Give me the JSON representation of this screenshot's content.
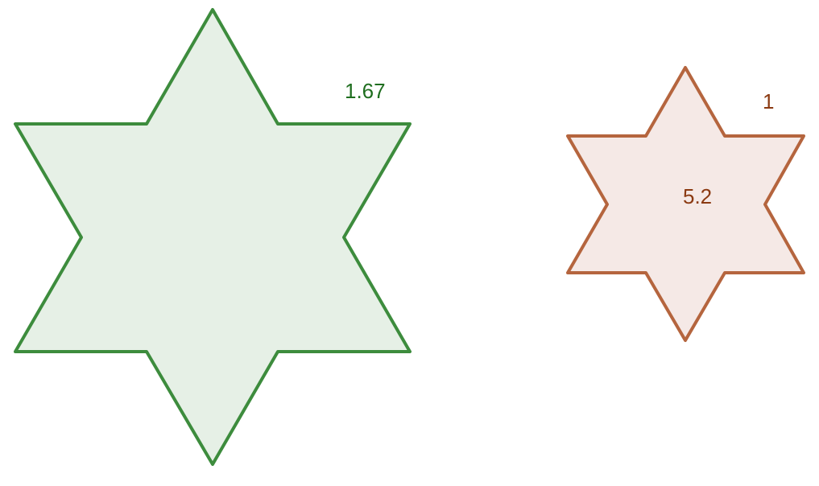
{
  "shapes": [
    {
      "name": "large-star",
      "label": "1.67",
      "stroke": "#3d8c3d",
      "fill": "#e6f0e6",
      "label_color": "#1f6e1f"
    },
    {
      "name": "small-star",
      "label_top": "1",
      "label_center": "5.2",
      "stroke": "#b5653e",
      "fill": "#f5e9e6",
      "label_color": "#8b3a12"
    }
  ]
}
